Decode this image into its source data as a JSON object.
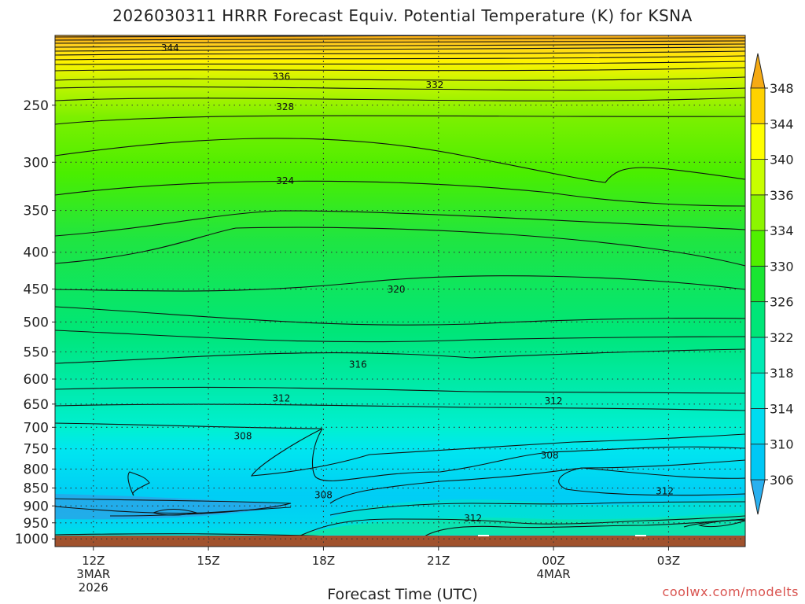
{
  "chart_data": {
    "type": "heatmap",
    "title": "2026030311 HRRR Forecast Equiv. Potential Temperature (K) for KSNA",
    "xlabel": "Forecast Time (UTC)",
    "ylabel": "",
    "y_scale": "log-pressure",
    "y_reversed": true,
    "ylim": [
      1025,
      200
    ],
    "y_ticks": [
      250,
      300,
      350,
      400,
      450,
      500,
      550,
      600,
      650,
      700,
      750,
      800,
      850,
      900,
      950,
      1000
    ],
    "x_ticks": [
      {
        "label": "12Z",
        "sub": [
          "3MAR",
          "2026"
        ]
      },
      {
        "label": "15Z",
        "sub": []
      },
      {
        "label": "18Z",
        "sub": []
      },
      {
        "label": "21Z",
        "sub": []
      },
      {
        "label": "00Z",
        "sub": [
          "4MAR"
        ]
      },
      {
        "label": "03Z",
        "sub": []
      }
    ],
    "x_range_hours": [
      11,
      29
    ],
    "grid": true,
    "colorbar": {
      "placement": "right",
      "levels": [
        306,
        310,
        314,
        318,
        322,
        326,
        330,
        334,
        336,
        340,
        344,
        348
      ],
      "colors": [
        "#00c8f5",
        "#00dcf0",
        "#00f0d2",
        "#00ebb4",
        "#00e678",
        "#19e632",
        "#50f000",
        "#8cf500",
        "#c8ff00",
        "#ffff00",
        "#ffd200",
        "#f5aa14"
      ]
    },
    "contour_labels": [
      {
        "label": "344",
        "x_hours": 14.0,
        "pressure": 208
      },
      {
        "label": "336",
        "x_hours": 16.9,
        "pressure": 228
      },
      {
        "label": "332",
        "x_hours": 20.9,
        "pressure": 234
      },
      {
        "label": "328",
        "x_hours": 17.0,
        "pressure": 251
      },
      {
        "label": "324",
        "x_hours": 17.0,
        "pressure": 318
      },
      {
        "label": "320",
        "x_hours": 19.9,
        "pressure": 450
      },
      {
        "label": "316",
        "x_hours": 18.9,
        "pressure": 572
      },
      {
        "label": "312",
        "x_hours": 16.9,
        "pressure": 637
      },
      {
        "label": "312",
        "x_hours": 24.0,
        "pressure": 643
      },
      {
        "label": "308",
        "x_hours": 15.9,
        "pressure": 719
      },
      {
        "label": "308",
        "x_hours": 23.9,
        "pressure": 765
      },
      {
        "label": "308",
        "x_hours": 18.0,
        "pressure": 868
      },
      {
        "label": "312",
        "x_hours": 26.9,
        "pressure": 857
      },
      {
        "label": "312",
        "x_hours": 21.9,
        "pressure": 935
      }
    ],
    "terrain_color": "#a0522d"
  },
  "footer": {
    "credit": "coolwx.com/modelts"
  }
}
